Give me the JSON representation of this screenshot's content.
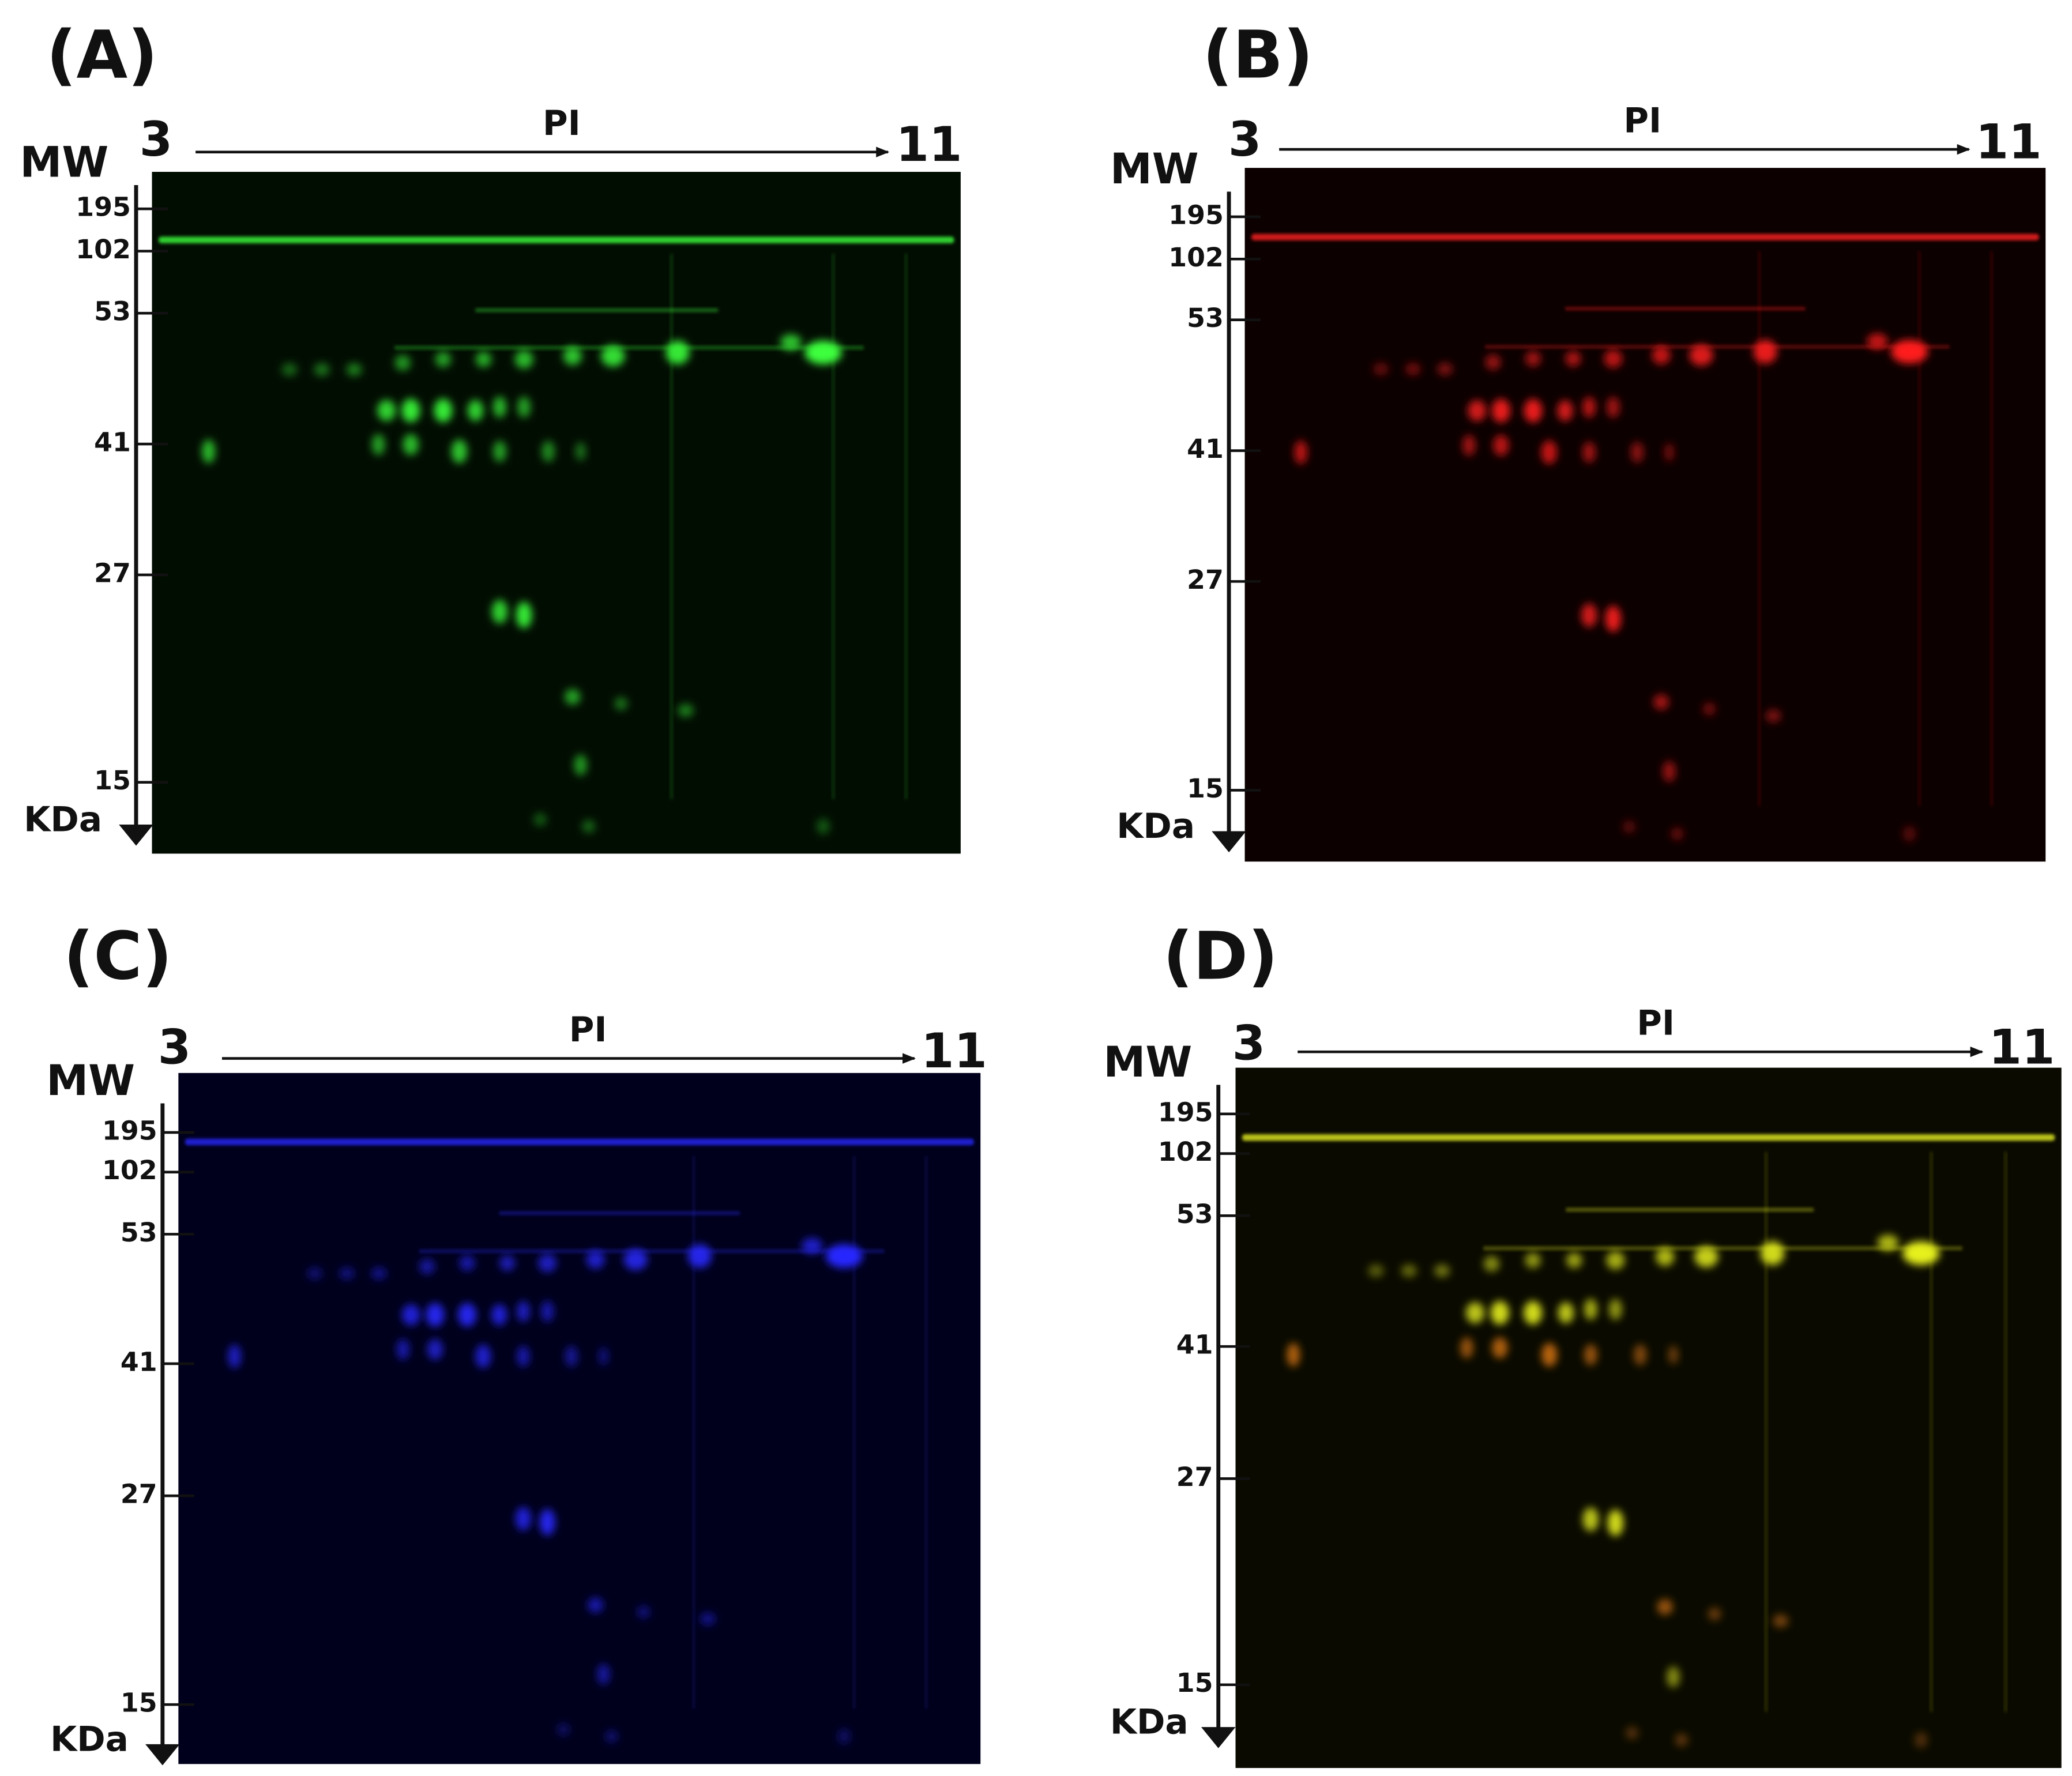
{
  "panels": [
    {
      "label": "(A)",
      "pi_label": "PI",
      "pi_start": "3",
      "pi_end": "11",
      "mw_label": "MW",
      "mw_unit": "KDa",
      "mw_markers": [
        "195",
        "102",
        "53",
        "41",
        "27",
        "15"
      ]
    },
    {
      "label": "(B)",
      "pi_label": "PI",
      "pi_start": "3",
      "pi_end": "11",
      "mw_label": "MW",
      "mw_unit": "KDa",
      "mw_markers": [
        "195",
        "102",
        "53",
        "41",
        "27",
        "15"
      ]
    },
    {
      "label": "(C)",
      "pi_label": "PI",
      "pi_start": "3",
      "pi_end": "11",
      "mw_label": "MW",
      "mw_unit": "KDa",
      "mw_markers": [
        "195",
        "102",
        "53",
        "41",
        "27",
        "15"
      ]
    },
    {
      "label": "(D)",
      "pi_label": "PI",
      "pi_start": "3",
      "pi_end": "11",
      "mw_label": "MW",
      "mw_unit": "KDa",
      "mw_markers": [
        "195",
        "102",
        "53",
        "41",
        "27",
        "15"
      ]
    }
  ]
}
